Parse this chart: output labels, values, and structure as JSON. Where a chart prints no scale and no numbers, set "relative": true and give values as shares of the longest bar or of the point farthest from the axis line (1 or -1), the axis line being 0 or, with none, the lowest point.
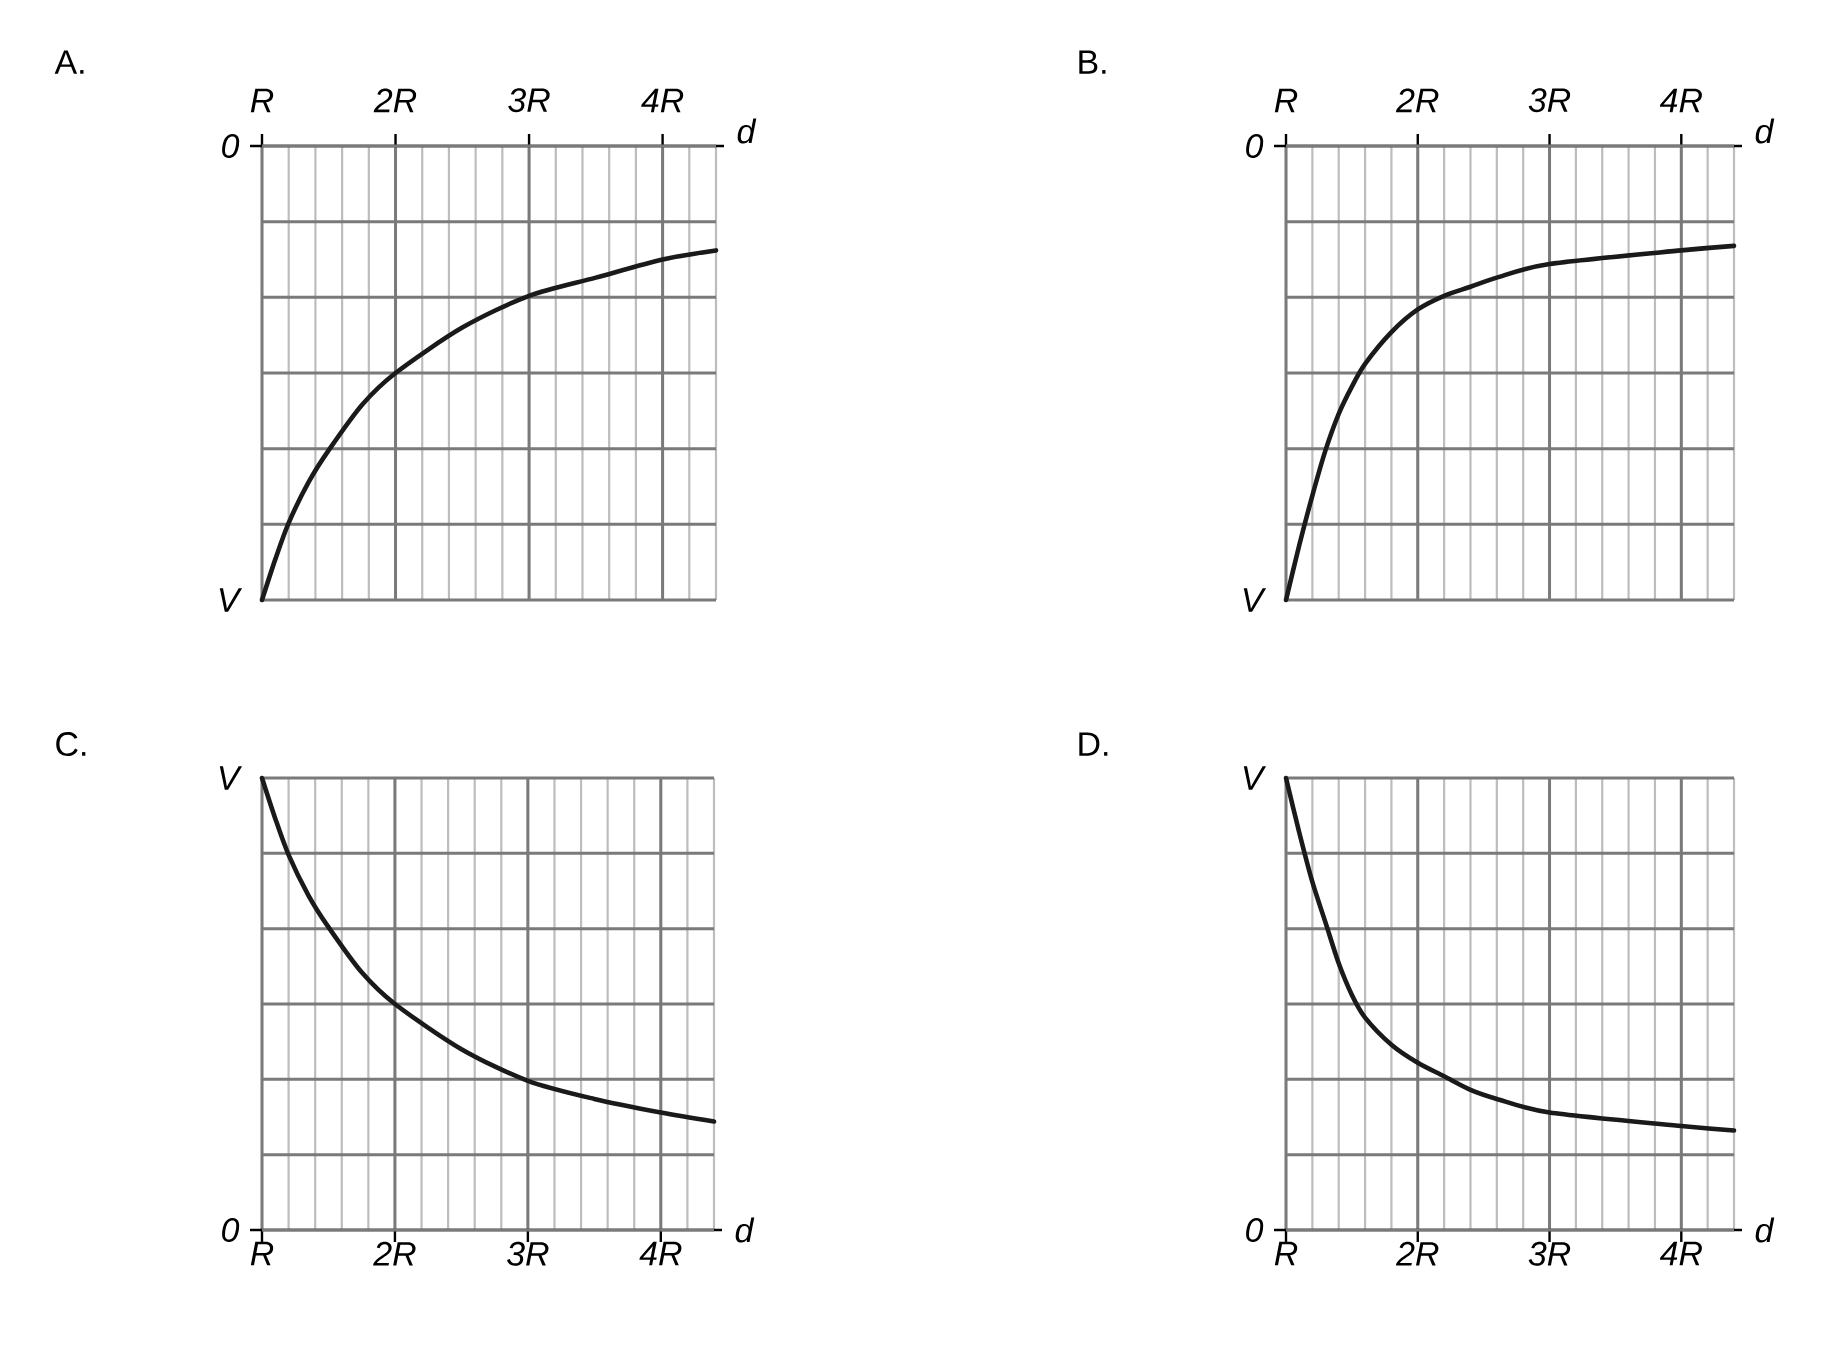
{
  "chart_data": [
    {
      "type": "line",
      "title": "A.",
      "xlabel": "d",
      "relative": true,
      "x": [
        1,
        1.1,
        1.2,
        1.35,
        1.5,
        1.75,
        2,
        2.5,
        3,
        3.5,
        4,
        4.4
      ],
      "values": [
        -1,
        -0.91,
        -0.83,
        -0.74,
        -0.67,
        -0.57,
        -0.5,
        -0.4,
        -0.33,
        -0.29,
        -0.25,
        -0.23
      ],
      "color": "#1a1a1a",
      "xlim": [
        1,
        4.4
      ],
      "xticks": [
        {
          "value": 1,
          "label": "R"
        },
        {
          "value": 2,
          "label": "2R"
        },
        {
          "value": 3,
          "label": "3R"
        },
        {
          "value": 4,
          "label": "4R"
        }
      ],
      "annotations": [
        "0",
        "V"
      ],
      "grid": true
    },
    {
      "type": "line",
      "title": "B.",
      "xlabel": "d",
      "relative": true,
      "x": [
        1,
        1.1,
        1.2,
        1.3,
        1.4,
        1.5,
        1.6,
        1.8,
        2,
        2.2,
        2.4,
        2.6,
        3,
        4,
        4.4
      ],
      "values": [
        -1,
        -0.88,
        -0.77,
        -0.67,
        -0.59,
        -0.53,
        -0.48,
        -0.41,
        -0.36,
        -0.33,
        -0.31,
        -0.29,
        -0.26,
        -0.23,
        -0.22
      ],
      "color": "#1a1a1a",
      "xlim": [
        1,
        4.4
      ],
      "xticks": [
        {
          "value": 1,
          "label": "R"
        },
        {
          "value": 2,
          "label": "2R"
        },
        {
          "value": 3,
          "label": "3R"
        },
        {
          "value": 4,
          "label": "4R"
        }
      ],
      "annotations": [
        "0",
        "V"
      ],
      "grid": true
    },
    {
      "type": "line",
      "title": "C.",
      "xlabel": "d",
      "relative": true,
      "x": [
        1,
        1.1,
        1.2,
        1.35,
        1.5,
        1.75,
        2,
        2.5,
        3,
        3.5,
        4,
        4.4
      ],
      "values": [
        1,
        0.91,
        0.83,
        0.74,
        0.67,
        0.57,
        0.5,
        0.4,
        0.33,
        0.29,
        0.26,
        0.24
      ],
      "color": "#1a1a1a",
      "xlim": [
        1,
        4.4
      ],
      "xticks": [
        {
          "value": 1,
          "label": "R"
        },
        {
          "value": 2,
          "label": "2R"
        },
        {
          "value": 3,
          "label": "3R"
        },
        {
          "value": 4,
          "label": "4R"
        }
      ],
      "annotations": [
        "V",
        "0"
      ],
      "grid": true
    },
    {
      "type": "line",
      "title": "D.",
      "xlabel": "d",
      "relative": true,
      "x": [
        1,
        1.1,
        1.2,
        1.3,
        1.4,
        1.5,
        1.6,
        1.8,
        2,
        2.2,
        2.4,
        2.6,
        3,
        4,
        4.4
      ],
      "values": [
        1,
        0.88,
        0.77,
        0.68,
        0.59,
        0.52,
        0.47,
        0.41,
        0.37,
        0.34,
        0.31,
        0.29,
        0.26,
        0.23,
        0.22
      ],
      "color": "#1a1a1a",
      "xlim": [
        1,
        4.4
      ],
      "xticks": [
        {
          "value": 1,
          "label": "R"
        },
        {
          "value": 2,
          "label": "2R"
        },
        {
          "value": 3,
          "label": "3R"
        },
        {
          "value": 4,
          "label": "4R"
        }
      ],
      "annotations": [
        "V",
        "0"
      ],
      "grid": true
    }
  ]
}
